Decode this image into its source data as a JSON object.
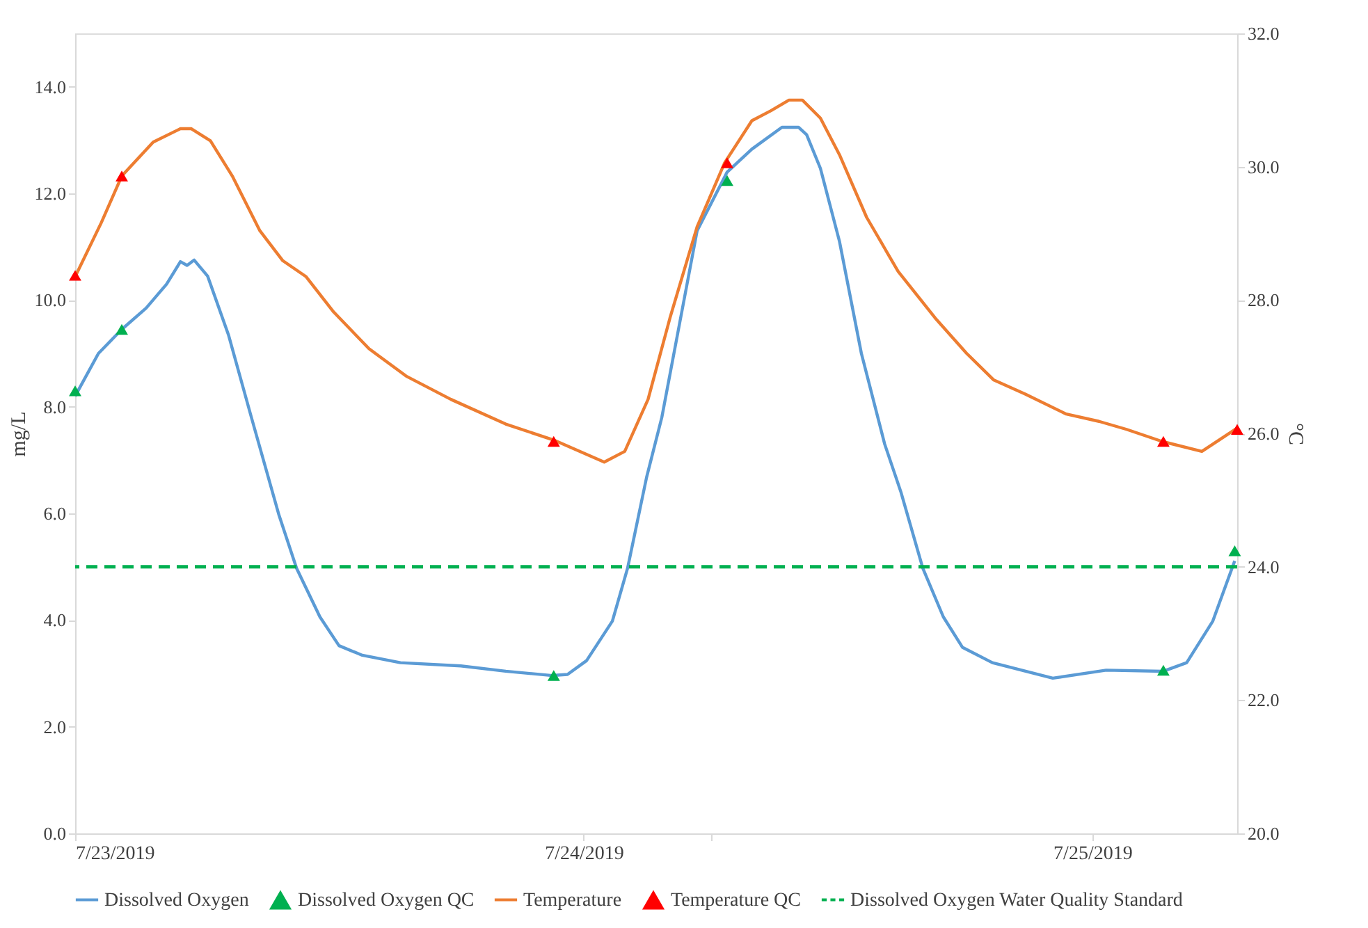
{
  "chart_data": {
    "type": "line",
    "ylabel": "mg/L",
    "y2label": "°C",
    "xlim": [
      "2019-07-23T00:00",
      "2019-07-25T06:50"
    ],
    "xticks": [
      {
        "value": "2019-07-23T00:00",
        "label": "7/23/2019"
      },
      {
        "value": "2019-07-24T00:00",
        "label": "7/24/2019"
      },
      {
        "value": "2019-07-24T06:00",
        "label": null
      },
      {
        "value": "2019-07-25T00:00",
        "label": "7/25/2019"
      }
    ],
    "ylim": [
      0,
      15
    ],
    "yticks": [
      {
        "value": 0,
        "label": "0.0"
      },
      {
        "value": 2,
        "label": "2.0"
      },
      {
        "value": 4,
        "label": "4.0"
      },
      {
        "value": 6,
        "label": "6.0"
      },
      {
        "value": 8,
        "label": "8.0"
      },
      {
        "value": 10,
        "label": "10.0"
      },
      {
        "value": 12,
        "label": "12.0"
      },
      {
        "value": 14,
        "label": "14.0"
      }
    ],
    "y2lim": [
      20,
      32
    ],
    "y2ticks": [
      {
        "value": 20,
        "label": "20.0"
      },
      {
        "value": 22,
        "label": "22.0"
      },
      {
        "value": 24,
        "label": "24.0"
      },
      {
        "value": 26,
        "label": "26.0"
      },
      {
        "value": 28,
        "label": "28.0"
      },
      {
        "value": 30,
        "label": "30.0"
      },
      {
        "value": 32,
        "label": "32.0"
      }
    ],
    "legend": "bottom",
    "series": [
      {
        "name": "Dissolved Oxygen",
        "color": "#5b9bd5",
        "line_style": "solid",
        "axis": "y",
        "x": [
          "2019-07-23T00:00",
          "2019-07-23T01:06",
          "2019-07-23T02:12",
          "2019-07-23T03:21",
          "2019-07-23T04:19",
          "2019-07-23T04:58",
          "2019-07-23T05:17",
          "2019-07-23T05:37",
          "2019-07-23T06:15",
          "2019-07-23T07:14",
          "2019-07-23T08:19",
          "2019-07-23T09:37",
          "2019-07-23T10:27",
          "2019-07-23T11:33",
          "2019-07-23T12:27",
          "2019-07-23T13:33",
          "2019-07-23T15:21",
          "2019-07-23T18:12",
          "2019-07-23T20:19",
          "2019-07-23T22:31",
          "2019-07-23T23:14",
          "2019-07-24T00:08",
          "2019-07-24T01:21",
          "2019-07-24T02:04",
          "2019-07-24T02:58",
          "2019-07-24T03:41",
          "2019-07-24T05:21",
          "2019-07-24T06:46",
          "2019-07-24T07:56",
          "2019-07-24T09:21",
          "2019-07-24T10:08",
          "2019-07-24T10:31",
          "2019-07-24T11:10",
          "2019-07-24T12:04",
          "2019-07-24T13:06",
          "2019-07-24T14:12",
          "2019-07-24T14:58",
          "2019-07-24T16:00",
          "2019-07-24T16:58",
          "2019-07-24T17:52",
          "2019-07-24T19:17",
          "2019-07-24T22:08",
          "2019-07-25T00:39",
          "2019-07-25T03:21",
          "2019-07-25T04:27",
          "2019-07-25T05:41",
          "2019-07-25T06:43"
        ],
        "values": [
          8.2,
          9.0,
          9.45,
          9.85,
          10.3,
          10.72,
          10.65,
          10.75,
          10.45,
          9.35,
          7.8,
          5.97,
          4.97,
          4.06,
          3.52,
          3.34,
          3.2,
          3.14,
          3.04,
          2.96,
          2.98,
          3.24,
          3.98,
          4.97,
          6.68,
          7.8,
          11.3,
          12.4,
          12.83,
          13.24,
          13.24,
          13.1,
          12.47,
          11.1,
          9.0,
          7.3,
          6.4,
          4.97,
          4.06,
          3.49,
          3.2,
          2.91,
          3.06,
          3.04,
          3.2,
          3.98,
          5.11
        ]
      },
      {
        "name": "Dissolved Oxygen QC",
        "type": "scatter",
        "color": "#00b050",
        "marker": "triangle",
        "axis": "y",
        "x": [
          "2019-07-23T00:00",
          "2019-07-23T02:12",
          "2019-07-23T22:35",
          "2019-07-24T06:46",
          "2019-07-25T03:21",
          "2019-07-25T06:43"
        ],
        "values": [
          8.3,
          9.45,
          2.96,
          12.24,
          3.06,
          5.3
        ]
      },
      {
        "name": "Temperature",
        "color": "#ed7d31",
        "line_style": "solid",
        "axis": "y2",
        "x": [
          "2019-07-23T00:00",
          "2019-07-23T01:14",
          "2019-07-23T02:12",
          "2019-07-23T03:41",
          "2019-07-23T04:58",
          "2019-07-23T05:29",
          "2019-07-23T06:23",
          "2019-07-23T07:25",
          "2019-07-23T08:43",
          "2019-07-23T09:48",
          "2019-07-23T10:54",
          "2019-07-23T12:12",
          "2019-07-23T13:52",
          "2019-07-23T15:37",
          "2019-07-23T17:44",
          "2019-07-23T20:19",
          "2019-07-23T22:35",
          "2019-07-24T00:58",
          "2019-07-24T01:56",
          "2019-07-24T03:02",
          "2019-07-24T04:04",
          "2019-07-24T05:21",
          "2019-07-24T06:39",
          "2019-07-24T07:56",
          "2019-07-24T08:50",
          "2019-07-24T09:41",
          "2019-07-24T10:19",
          "2019-07-24T11:10",
          "2019-07-24T12:04",
          "2019-07-24T13:21",
          "2019-07-24T14:50",
          "2019-07-24T16:35",
          "2019-07-24T18:04",
          "2019-07-24T19:21",
          "2019-07-24T20:50",
          "2019-07-24T22:46",
          "2019-07-25T00:19",
          "2019-07-25T01:37",
          "2019-07-25T03:17",
          "2019-07-25T05:10",
          "2019-07-25T06:50"
        ],
        "values": [
          28.35,
          29.16,
          29.86,
          30.37,
          30.57,
          30.57,
          30.39,
          29.86,
          29.04,
          28.59,
          28.35,
          27.82,
          27.27,
          26.86,
          26.51,
          26.14,
          25.9,
          25.57,
          25.73,
          26.51,
          27.73,
          29.1,
          30.06,
          30.69,
          30.84,
          31.0,
          31.0,
          30.73,
          30.18,
          29.24,
          28.43,
          27.73,
          27.2,
          26.8,
          26.59,
          26.29,
          26.18,
          26.06,
          25.88,
          25.73,
          26.08
        ]
      },
      {
        "name": "Temperature QC",
        "type": "scatter",
        "color": "#ff0000",
        "marker": "triangle",
        "axis": "y2",
        "x": [
          "2019-07-23T00:00",
          "2019-07-23T02:12",
          "2019-07-23T22:35",
          "2019-07-24T06:46",
          "2019-07-25T03:21",
          "2019-07-25T06:50"
        ],
        "values": [
          28.37,
          29.86,
          25.88,
          30.06,
          25.88,
          26.06
        ]
      }
    ],
    "ref_lines": [
      {
        "axis": "y",
        "value": 5.0,
        "label": "Dissolved Oxygen Water Quality Standard",
        "color": "#00b050",
        "line_style": "dashed"
      }
    ]
  }
}
